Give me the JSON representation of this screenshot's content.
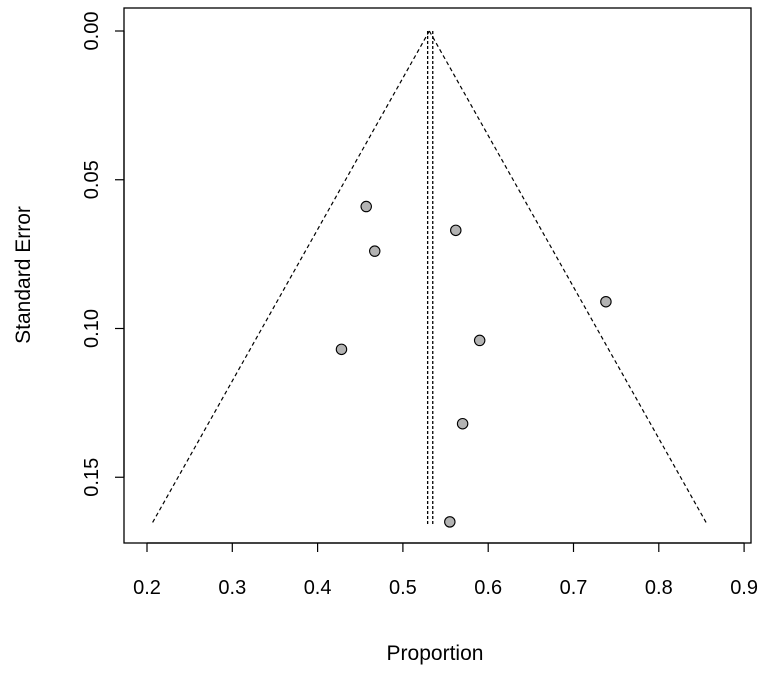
{
  "chart_data": {
    "type": "scatter",
    "title": "",
    "xlabel": "Proportion",
    "ylabel": "Standard Error",
    "xlim": [
      0.18,
      0.9
    ],
    "ylim": [
      0.0,
      0.166
    ],
    "y_axis_reversed": true,
    "x_ticks": [
      0.2,
      0.3,
      0.4,
      0.5,
      0.6,
      0.7,
      0.8,
      0.9
    ],
    "x_tick_labels": [
      "0.2",
      "0.3",
      "0.4",
      "0.5",
      "0.6",
      "0.7",
      "0.8",
      "0.9"
    ],
    "y_ticks": [
      0.0,
      0.05,
      0.1,
      0.15
    ],
    "y_tick_labels": [
      "0.00",
      "0.05",
      "0.10",
      "0.15"
    ],
    "grid": false,
    "legend": "none",
    "points": [
      {
        "x": 0.457,
        "y": 0.059
      },
      {
        "x": 0.562,
        "y": 0.067
      },
      {
        "x": 0.467,
        "y": 0.074
      },
      {
        "x": 0.738,
        "y": 0.091
      },
      {
        "x": 0.59,
        "y": 0.104
      },
      {
        "x": 0.428,
        "y": 0.107
      },
      {
        "x": 0.57,
        "y": 0.132
      },
      {
        "x": 0.555,
        "y": 0.165
      }
    ],
    "funnel": {
      "apex": {
        "x": 0.531,
        "y": 0.0
      },
      "base_left": {
        "x": 0.205,
        "y": 0.166
      },
      "base_right": {
        "x": 0.857,
        "y": 0.166
      }
    },
    "reference_lines_x": [
      0.529,
      0.535
    ],
    "colors": {
      "point_fill": "#b3b3b3",
      "point_stroke": "#000000",
      "line": "#000000"
    }
  }
}
